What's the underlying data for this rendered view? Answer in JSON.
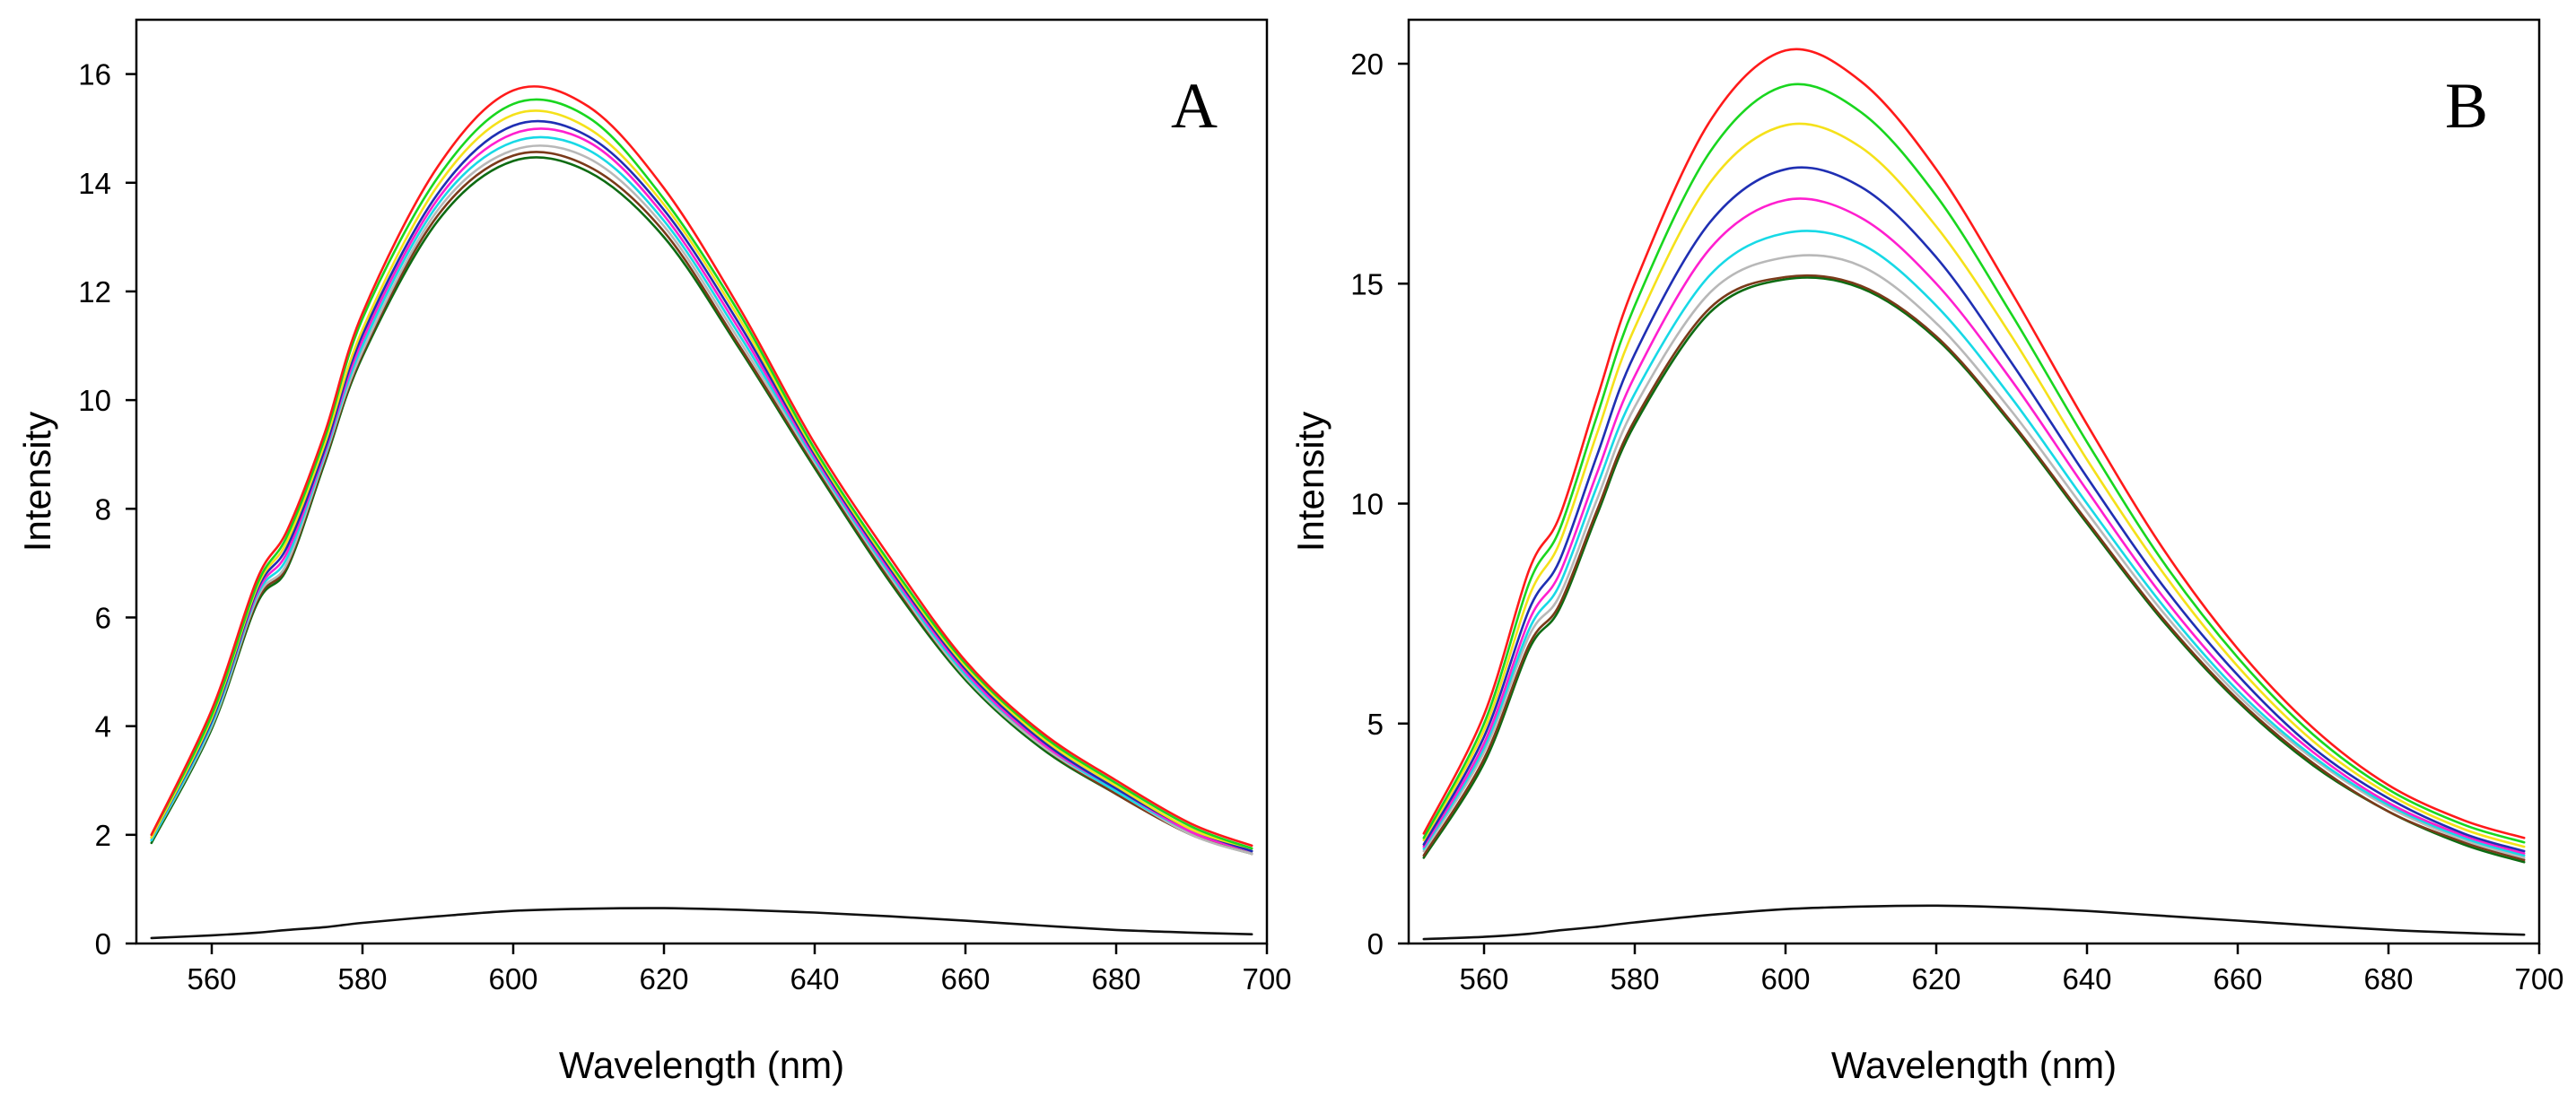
{
  "chart_data": [
    {
      "type": "line",
      "panel_label": "A",
      "title": "",
      "xlabel": "Wavelength (nm)",
      "ylabel": "Intensity",
      "xlim": [
        550,
        700
      ],
      "ylim": [
        0,
        17
      ],
      "xticks": [
        "560",
        "580",
        "600",
        "620",
        "640",
        "660",
        "680",
        "700"
      ],
      "yticks": [
        "0",
        "2",
        "4",
        "6",
        "8",
        "10",
        "12",
        "14",
        "16"
      ],
      "grid": false,
      "legend": "none",
      "x": [
        552,
        560,
        566,
        570,
        575,
        580,
        590,
        600,
        610,
        620,
        630,
        640,
        650,
        660,
        670,
        680,
        690,
        698
      ],
      "series": [
        {
          "name": "red",
          "color": "#ff1a1a",
          "values": [
            2.0,
            4.3,
            6.7,
            7.6,
            9.4,
            11.6,
            14.3,
            15.7,
            15.4,
            13.9,
            11.7,
            9.2,
            7.1,
            5.2,
            3.9,
            3.0,
            2.2,
            1.8
          ]
        },
        {
          "name": "green",
          "color": "#19d61f",
          "values": [
            2.0,
            4.2,
            6.6,
            7.5,
            9.3,
            11.5,
            14.1,
            15.45,
            15.2,
            13.7,
            11.6,
            9.1,
            7.0,
            5.15,
            3.85,
            2.95,
            2.15,
            1.75
          ]
        },
        {
          "name": "yellow",
          "color": "#f5e11a",
          "values": [
            1.95,
            4.15,
            6.55,
            7.4,
            9.2,
            11.3,
            13.95,
            15.25,
            15.0,
            13.6,
            11.5,
            9.05,
            6.95,
            5.1,
            3.8,
            2.9,
            2.1,
            1.75
          ]
        },
        {
          "name": "blue",
          "color": "#1f2fb3",
          "values": [
            1.95,
            4.1,
            6.5,
            7.3,
            9.1,
            11.2,
            13.8,
            15.05,
            14.85,
            13.5,
            11.4,
            9.0,
            6.9,
            5.05,
            3.75,
            2.85,
            2.1,
            1.7
          ]
        },
        {
          "name": "magenta",
          "color": "#ff1fcf",
          "values": [
            1.95,
            4.1,
            6.45,
            7.2,
            9.05,
            11.1,
            13.7,
            14.9,
            14.75,
            13.4,
            11.3,
            8.95,
            6.85,
            5.0,
            3.7,
            2.85,
            2.05,
            1.7
          ]
        },
        {
          "name": "cyan",
          "color": "#17d9e6",
          "values": [
            1.9,
            4.05,
            6.4,
            7.1,
            9.0,
            11.0,
            13.6,
            14.75,
            14.6,
            13.3,
            11.2,
            8.9,
            6.8,
            4.95,
            3.7,
            2.8,
            2.05,
            1.7
          ]
        },
        {
          "name": "gray",
          "color": "#b8b8b8",
          "values": [
            1.9,
            4.0,
            6.35,
            7.0,
            8.95,
            10.9,
            13.5,
            14.6,
            14.45,
            13.2,
            11.1,
            8.85,
            6.75,
            4.9,
            3.65,
            2.8,
            2.0,
            1.65
          ]
        },
        {
          "name": "brown",
          "color": "#7a3a1a",
          "values": [
            1.9,
            4.0,
            6.3,
            6.95,
            8.9,
            10.85,
            13.4,
            14.5,
            14.3,
            13.1,
            11.0,
            8.8,
            6.7,
            4.9,
            3.65,
            2.75,
            2.0,
            1.65
          ]
        },
        {
          "name": "dark green",
          "color": "#0d6b12",
          "values": [
            1.85,
            3.95,
            6.25,
            6.9,
            8.85,
            10.8,
            13.3,
            14.4,
            14.2,
            13.0,
            10.95,
            8.75,
            6.65,
            4.85,
            3.6,
            2.75,
            2.0,
            1.65
          ]
        },
        {
          "name": "black",
          "color": "#111111",
          "values": [
            0.1,
            0.15,
            0.2,
            0.25,
            0.3,
            0.38,
            0.5,
            0.6,
            0.64,
            0.65,
            0.62,
            0.57,
            0.5,
            0.42,
            0.33,
            0.25,
            0.2,
            0.17
          ]
        }
      ]
    },
    {
      "type": "line",
      "panel_label": "B",
      "title": "",
      "xlabel": "Wavelength (nm)",
      "ylabel": "Intensity",
      "xlim": [
        550,
        700
      ],
      "ylim": [
        0,
        21
      ],
      "xticks": [
        "560",
        "580",
        "600",
        "620",
        "640",
        "660",
        "680",
        "700"
      ],
      "yticks": [
        "0",
        "5",
        "10",
        "15",
        "20"
      ],
      "grid": false,
      "legend": "none",
      "x": [
        552,
        560,
        566,
        570,
        575,
        580,
        590,
        600,
        610,
        620,
        630,
        640,
        650,
        660,
        670,
        680,
        690,
        698
      ],
      "series": [
        {
          "name": "red",
          "color": "#ff1a1a",
          "values": [
            2.5,
            5.2,
            8.5,
            9.7,
            12.4,
            15.0,
            18.7,
            20.3,
            19.6,
            17.6,
            14.8,
            11.8,
            9.0,
            6.7,
            4.9,
            3.6,
            2.8,
            2.4
          ]
        },
        {
          "name": "green",
          "color": "#19d61f",
          "values": [
            2.4,
            5.0,
            8.2,
            9.4,
            12.0,
            14.5,
            18.0,
            19.5,
            18.9,
            17.0,
            14.3,
            11.4,
            8.7,
            6.5,
            4.75,
            3.5,
            2.7,
            2.3
          ]
        },
        {
          "name": "yellow",
          "color": "#f5e11a",
          "values": [
            2.35,
            4.85,
            7.9,
            9.1,
            11.6,
            14.0,
            17.3,
            18.6,
            18.1,
            16.3,
            13.8,
            11.0,
            8.45,
            6.3,
            4.6,
            3.4,
            2.6,
            2.2
          ]
        },
        {
          "name": "blue",
          "color": "#1f2fb3",
          "values": [
            2.25,
            4.7,
            7.6,
            8.7,
            11.1,
            13.4,
            16.4,
            17.6,
            17.2,
            15.6,
            13.2,
            10.6,
            8.15,
            6.1,
            4.45,
            3.3,
            2.5,
            2.1
          ]
        },
        {
          "name": "magenta",
          "color": "#ff1fcf",
          "values": [
            2.2,
            4.55,
            7.35,
            8.4,
            10.7,
            12.9,
            15.8,
            16.9,
            16.5,
            15.0,
            12.8,
            10.3,
            7.9,
            5.9,
            4.35,
            3.2,
            2.45,
            2.05
          ]
        },
        {
          "name": "cyan",
          "color": "#17d9e6",
          "values": [
            2.15,
            4.45,
            7.15,
            8.15,
            10.4,
            12.5,
            15.2,
            16.15,
            15.9,
            14.5,
            12.4,
            10.0,
            7.7,
            5.75,
            4.25,
            3.15,
            2.4,
            2.0
          ]
        },
        {
          "name": "gray",
          "color": "#b8b8b8",
          "values": [
            2.1,
            4.35,
            7.0,
            7.9,
            10.1,
            12.2,
            14.8,
            15.6,
            15.4,
            14.1,
            12.1,
            9.8,
            7.55,
            5.65,
            4.2,
            3.1,
            2.35,
            1.95
          ]
        },
        {
          "name": "brown",
          "color": "#7a3a1a",
          "values": [
            2.0,
            4.2,
            6.8,
            7.7,
            9.85,
            11.9,
            14.45,
            15.15,
            14.95,
            13.8,
            11.85,
            9.6,
            7.4,
            5.55,
            4.1,
            3.0,
            2.3,
            1.9
          ]
        },
        {
          "name": "dark green",
          "color": "#0d6b12",
          "values": [
            1.95,
            4.1,
            6.7,
            7.6,
            9.75,
            11.8,
            14.35,
            15.1,
            14.9,
            13.75,
            11.8,
            9.55,
            7.35,
            5.5,
            4.05,
            3.0,
            2.25,
            1.85
          ]
        },
        {
          "name": "black",
          "color": "#111111",
          "values": [
            0.1,
            0.15,
            0.22,
            0.3,
            0.38,
            0.48,
            0.65,
            0.78,
            0.84,
            0.86,
            0.82,
            0.74,
            0.63,
            0.52,
            0.41,
            0.31,
            0.24,
            0.2
          ]
        }
      ]
    }
  ]
}
